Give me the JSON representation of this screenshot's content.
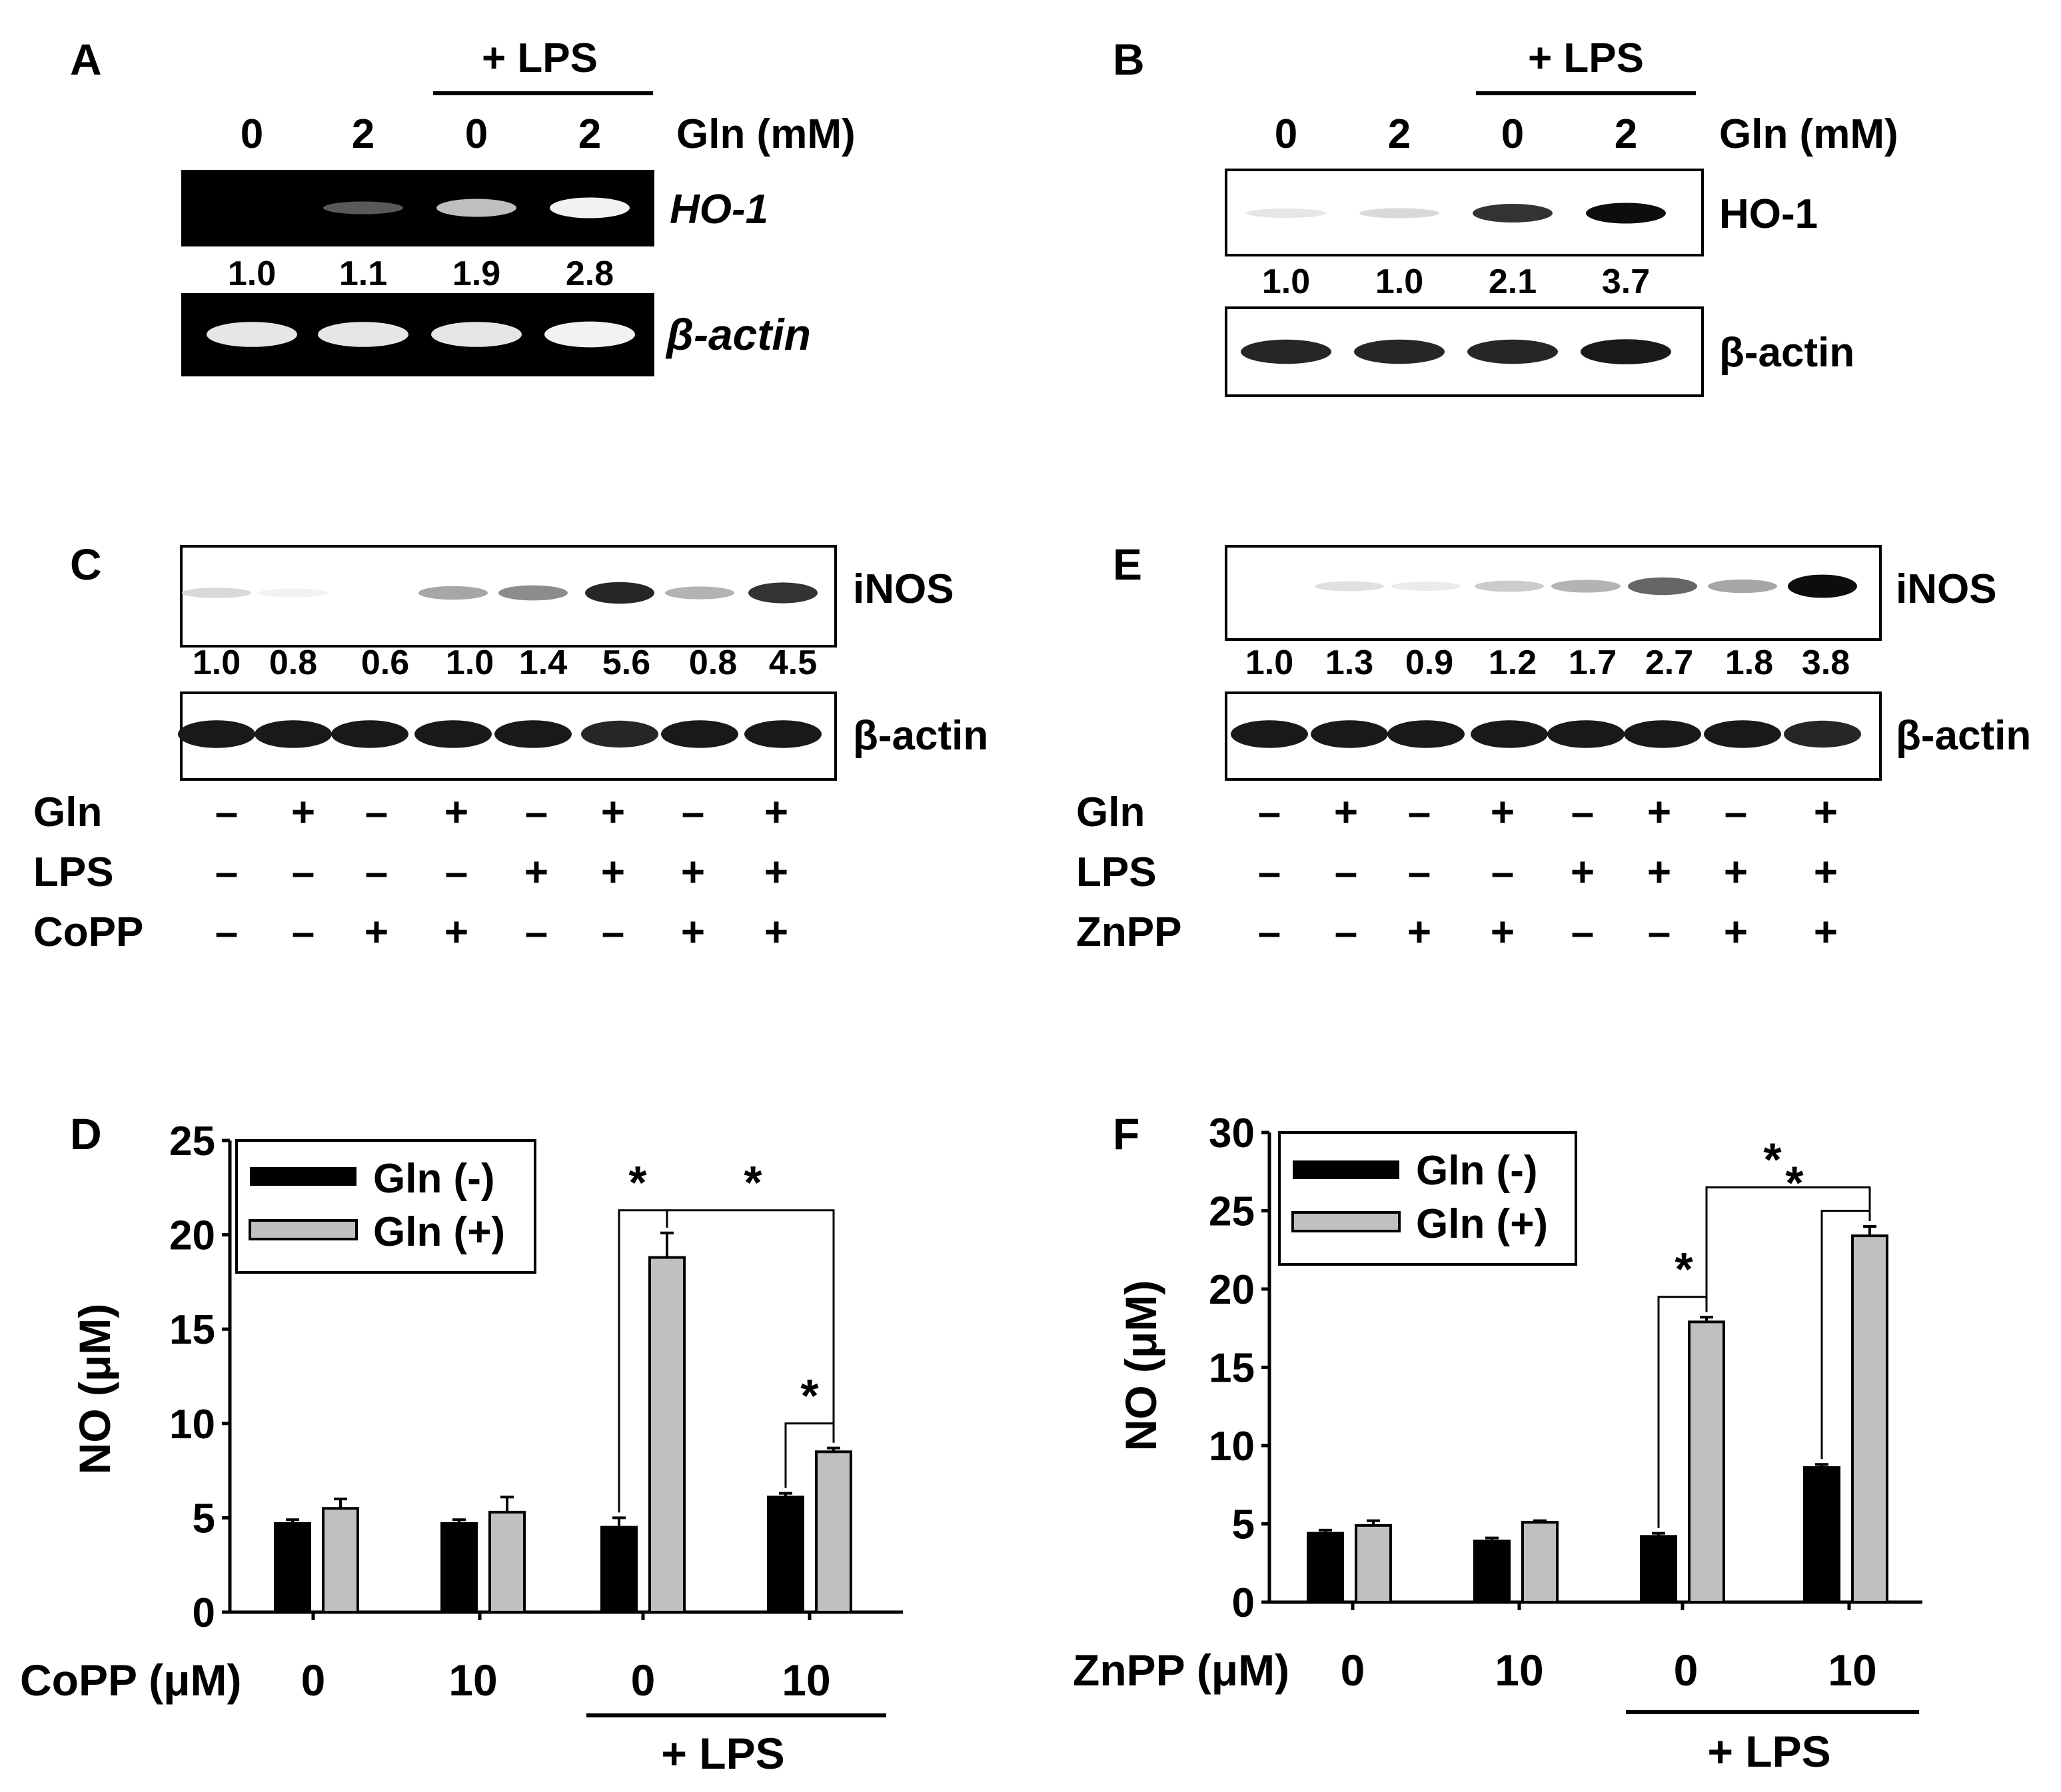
{
  "chart_data": [
    {
      "panel": "A",
      "type": "gel",
      "header": "+ LPS",
      "axis_label": "Gln (mM)",
      "lanes": [
        "0",
        "2",
        "0",
        "2"
      ],
      "target": "HO-1",
      "values": [
        "1.0",
        "1.1",
        "1.9",
        "2.8"
      ],
      "band_intensity": [
        0.0,
        0.35,
        0.75,
        0.95
      ],
      "control": "β-actin",
      "control_intensity": [
        0.9,
        0.9,
        0.9,
        0.95
      ]
    },
    {
      "panel": "B",
      "type": "blot",
      "header": "+ LPS",
      "axis_label": "Gln (mM)",
      "lanes": [
        "0",
        "2",
        "0",
        "2"
      ],
      "target": "HO-1",
      "values": [
        "1.0",
        "1.0",
        "2.1",
        "3.7"
      ],
      "band_intensity": [
        0.1,
        0.15,
        0.8,
        0.95
      ],
      "control": "β-actin",
      "control_intensity": [
        0.85,
        0.85,
        0.85,
        0.9
      ]
    },
    {
      "panel": "C",
      "type": "blot",
      "target": "iNOS",
      "values": [
        "1.0",
        "0.8",
        "0.6",
        "1.0",
        "1.4",
        "5.6",
        "0.8",
        "4.5"
      ],
      "band_intensity": [
        0.15,
        0.05,
        0.0,
        0.35,
        0.45,
        0.85,
        0.3,
        0.8
      ],
      "control": "β-actin",
      "control_intensity": [
        0.9,
        0.9,
        0.9,
        0.9,
        0.9,
        0.85,
        0.9,
        0.9
      ],
      "conditions": [
        {
          "name": "Gln",
          "signs": [
            "–",
            "+",
            "–",
            "+",
            "–",
            "+",
            "–",
            "+"
          ]
        },
        {
          "name": "LPS",
          "signs": [
            "–",
            "–",
            "–",
            "–",
            "+",
            "+",
            "+",
            "+"
          ]
        },
        {
          "name": "CoPP",
          "signs": [
            "–",
            "–",
            "+",
            "+",
            "–",
            "–",
            "+",
            "+"
          ]
        }
      ]
    },
    {
      "panel": "E",
      "type": "blot",
      "target": "iNOS",
      "values": [
        "1.0",
        "1.3",
        "0.9",
        "1.2",
        "1.7",
        "2.7",
        "1.8",
        "3.8"
      ],
      "band_intensity": [
        0.0,
        0.12,
        0.08,
        0.2,
        0.3,
        0.6,
        0.35,
        0.95
      ],
      "control": "β-actin",
      "control_intensity": [
        0.9,
        0.9,
        0.9,
        0.9,
        0.9,
        0.9,
        0.9,
        0.85
      ],
      "conditions": [
        {
          "name": "Gln",
          "signs": [
            "–",
            "+",
            "–",
            "+",
            "–",
            "+",
            "–",
            "+"
          ]
        },
        {
          "name": "LPS",
          "signs": [
            "–",
            "–",
            "–",
            "–",
            "+",
            "+",
            "+",
            "+"
          ]
        },
        {
          "name": "ZnPP",
          "signs": [
            "–",
            "–",
            "+",
            "+",
            "–",
            "–",
            "+",
            "+"
          ]
        }
      ]
    },
    {
      "panel": "D",
      "type": "bar",
      "ylabel": "NO (μM)",
      "ylim": [
        0,
        25
      ],
      "yticks": [
        0,
        5,
        10,
        15,
        20,
        25
      ],
      "xlabel": "CoPP (μM)",
      "categories": [
        "0",
        "10",
        "0",
        "10"
      ],
      "group_label": "+ LPS",
      "series": [
        {
          "name": "Gln (-)",
          "color": "#000000",
          "values": [
            4.7,
            4.7,
            4.5,
            6.1
          ],
          "errors": [
            0.2,
            0.2,
            0.5,
            0.2
          ]
        },
        {
          "name": "Gln (+)",
          "color": "#c0c0c0",
          "values": [
            5.5,
            5.3,
            18.8,
            8.5
          ],
          "errors": [
            0.5,
            0.8,
            1.3,
            0.2
          ]
        }
      ],
      "significance": "*"
    },
    {
      "panel": "F",
      "type": "bar",
      "ylabel": "NO (μM)",
      "ylim": [
        0,
        30
      ],
      "yticks": [
        0,
        5,
        10,
        15,
        20,
        25,
        30
      ],
      "xlabel": "ZnPP (μM)",
      "categories": [
        "0",
        "10",
        "0",
        "10"
      ],
      "group_label": "+ LPS",
      "series": [
        {
          "name": "Gln (-)",
          "color": "#000000",
          "values": [
            4.4,
            3.9,
            4.2,
            8.6
          ],
          "errors": [
            0.2,
            0.2,
            0.2,
            0.2
          ]
        },
        {
          "name": "Gln (+)",
          "color": "#c0c0c0",
          "values": [
            4.9,
            5.1,
            17.9,
            23.4
          ],
          "errors": [
            0.3,
            0.1,
            0.3,
            0.6
          ]
        }
      ],
      "significance": "*"
    }
  ]
}
